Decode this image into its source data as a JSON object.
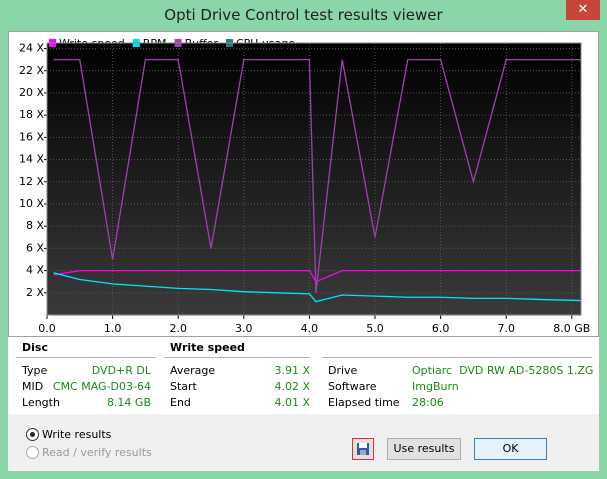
{
  "window": {
    "title": "Opti Drive Control test results viewer"
  },
  "chart_data": {
    "type": "line",
    "x": [
      0.1,
      0.5,
      1,
      1.5,
      2,
      2.5,
      3,
      3.5,
      4,
      4.1,
      4.5,
      5,
      5.5,
      6,
      6.5,
      7,
      7.5,
      8.14
    ],
    "series": [
      {
        "name": "Write speed",
        "color": "#ff00ff",
        "values": [
          3.6,
          4,
          4,
          4,
          4,
          4,
          4,
          4,
          4,
          3,
          4,
          4,
          4,
          4,
          4,
          4,
          4,
          4
        ]
      },
      {
        "name": "RPM",
        "color": "#00e5ff",
        "values": [
          3.8,
          3.2,
          2.8,
          2.6,
          2.4,
          2.3,
          2.1,
          2,
          1.9,
          1.2,
          1.8,
          1.7,
          1.6,
          1.6,
          1.5,
          1.5,
          1.4,
          1.3
        ]
      },
      {
        "name": "Buffer",
        "color": "#a040b0",
        "values": [
          23,
          23,
          5,
          23,
          23,
          6,
          23,
          23,
          23,
          2,
          23,
          7,
          23,
          23,
          12,
          23,
          23,
          23
        ]
      },
      {
        "name": "CPU usage",
        "color": "#208080",
        "values": [
          0,
          0,
          0,
          0,
          0,
          0,
          0,
          0,
          0,
          0,
          0,
          0,
          0,
          0,
          0,
          0,
          0,
          0
        ]
      }
    ],
    "xlim": [
      0,
      8.14
    ],
    "ylim": [
      0,
      24.5
    ],
    "xticks": [
      {
        "value": 0,
        "label": "0.0"
      },
      {
        "value": 1,
        "label": "1.0"
      },
      {
        "value": 2,
        "label": "2.0"
      },
      {
        "value": 3,
        "label": "3.0"
      },
      {
        "value": 4,
        "label": "4.0"
      },
      {
        "value": 5,
        "label": "5.0"
      },
      {
        "value": 6,
        "label": "6.0"
      },
      {
        "value": 7,
        "label": "7.0"
      },
      {
        "value": 8,
        "label": "8.0 GB"
      }
    ],
    "yticks": [
      {
        "value": 2,
        "label": "2 X"
      },
      {
        "value": 4,
        "label": "4 X"
      },
      {
        "value": 6,
        "label": "6 X"
      },
      {
        "value": 8,
        "label": "8 X"
      },
      {
        "value": 10,
        "label": "10 X"
      },
      {
        "value": 12,
        "label": "12 X"
      },
      {
        "value": 14,
        "label": "14 X"
      },
      {
        "value": 16,
        "label": "16 X"
      },
      {
        "value": 18,
        "label": "18 X"
      },
      {
        "value": 20,
        "label": "20 X"
      },
      {
        "value": 22,
        "label": "22 X"
      },
      {
        "value": 24,
        "label": "24 X"
      }
    ],
    "grid": true,
    "legend": "top-left"
  },
  "disc": {
    "heading": "Disc",
    "rows": [
      [
        "Type",
        "DVD+R DL"
      ],
      [
        "MID",
        "CMC MAG-D03-64"
      ],
      [
        "Length",
        "8.14 GB"
      ]
    ]
  },
  "write_speed": {
    "heading": "Write speed",
    "rows": [
      [
        "Average",
        "3.91 X"
      ],
      [
        "Start",
        "4.02 X"
      ],
      [
        "End",
        "4.01 X"
      ]
    ]
  },
  "drive": {
    "rows": [
      [
        "Drive",
        "Optiarc  DVD RW AD-5280S 1.ZG"
      ],
      [
        "Software",
        "ImgBurn"
      ],
      [
        "Elapsed time",
        "28:06"
      ]
    ]
  },
  "options": [
    "Write results",
    "Read / verify results"
  ],
  "buttons": [
    "Use results",
    "OK"
  ]
}
